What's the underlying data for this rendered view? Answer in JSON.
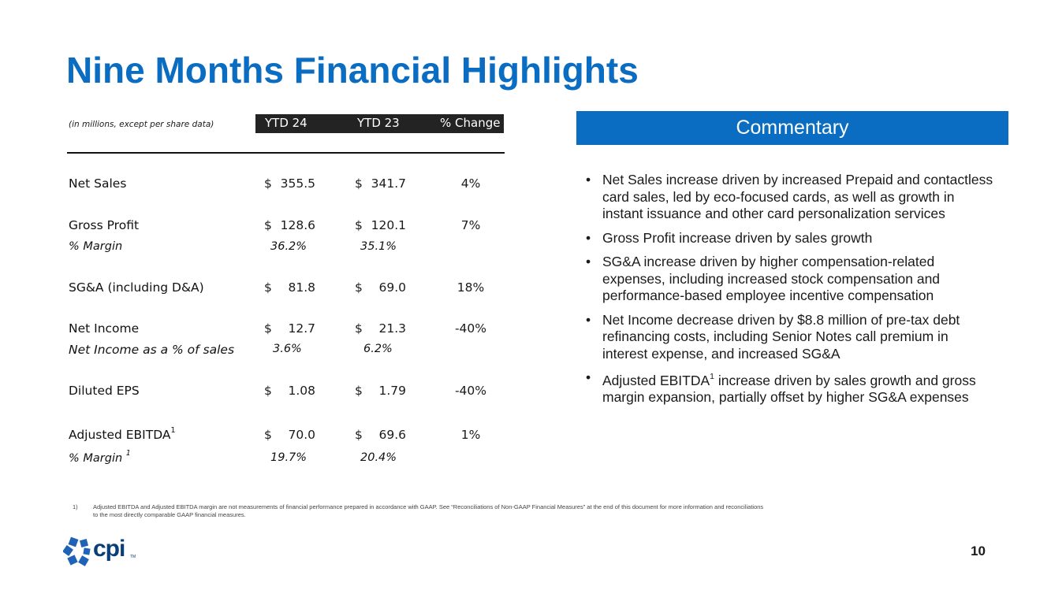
{
  "title": "Nine Months Financial Highlights",
  "table": {
    "units_note": "(in millions, except per share data)",
    "columns": [
      "YTD 24",
      "YTD 23",
      "% Change"
    ],
    "currency_symbol": "$",
    "rows": [
      {
        "label": "Net Sales",
        "ytd24": "355.5",
        "ytd23": "341.7",
        "change": "4%"
      },
      {
        "label": "Gross Profit",
        "ytd24": "128.6",
        "ytd23": "120.1",
        "change": "7%"
      },
      {
        "label": "% Margin",
        "ytd24": "36.2%",
        "ytd23": "35.1%"
      },
      {
        "label": "SG&A (including D&A)",
        "ytd24": "81.8",
        "ytd23": "69.0",
        "change": "18%"
      },
      {
        "label": "Net Income",
        "ytd24": "12.7",
        "ytd23": "21.3",
        "change": "-40%"
      },
      {
        "label": "Net Income as a % of sales",
        "ytd24": "3.6%",
        "ytd23": "6.2%"
      },
      {
        "label": "Diluted EPS",
        "ytd24": "1.08",
        "ytd23": "1.79",
        "change": "-40%"
      },
      {
        "label": "Adjusted EBITDA",
        "sup": "1",
        "ytd24": "70.0",
        "ytd23": "69.6",
        "change": "1%"
      },
      {
        "label": "% Margin ",
        "sup": "1",
        "ytd24": "19.7%",
        "ytd23": "20.4%"
      }
    ]
  },
  "commentary": {
    "header": "Commentary",
    "bullet_char": "•",
    "bullets": [
      {
        "text": "Net Sales increase driven by increased Prepaid and contactless card sales, led by eco-focused cards, as well as growth in instant issuance and other card personalization services"
      },
      {
        "text": "Gross Profit increase driven by sales growth"
      },
      {
        "text": "SG&A increase driven by higher compensation-related expenses, including increased stock compensation and performance-based employee incentive compensation"
      },
      {
        "text": "Net Income decrease driven by $8.8 million of pre-tax debt refinancing costs, including Senior Notes call premium in interest expense, and increased SG&A"
      },
      {
        "pre": "Adjusted EBITDA",
        "sup": "1",
        "post": " increase driven by sales growth and gross margin expansion, partially offset by higher SG&A expenses"
      }
    ]
  },
  "footnote": {
    "number": "1)",
    "text": "Adjusted EBITDA and Adjusted EBITDA margin are not measurements of financial performance prepared in accordance with GAAP. See “Reconciliations of Non-GAAP Financial Measures” at the end of this document for more information and reconciliations to the most directly comparable GAAP financial measures."
  },
  "logo": {
    "text": "cpi",
    "tm": "TM",
    "color": "#0A3E78"
  },
  "page_number": "10",
  "colors": {
    "accent": "#0A6DC2",
    "header_bar": "#232323"
  }
}
